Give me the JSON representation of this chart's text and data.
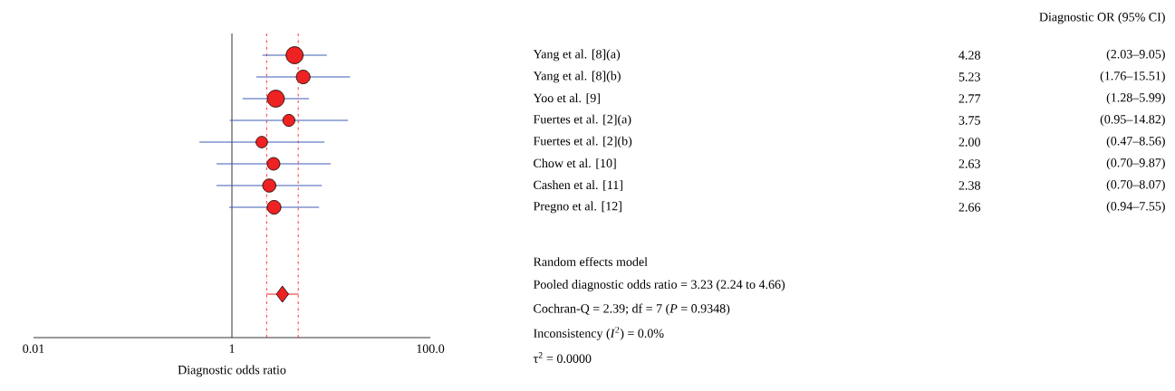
{
  "chart_data": {
    "type": "bubble",
    "orientation": "horizontal",
    "log": "x",
    "title": "Diagnostic OR (95% CI)",
    "xlabel": "Diagnostic odds ratio",
    "xlim": [
      0.01,
      100
    ],
    "xticks": [
      0.01,
      1,
      {
        "value": 100,
        "label": "100.0"
      }
    ],
    "categories": [
      "Yang et al. [8](a)",
      "Yang et al. [8](b)",
      "Yoo et al. [9]",
      "Fuertes et al. [2](a)",
      "Fuertes et al. [2](b)",
      "Chow et al. [10]",
      "Cashen et al. [11]",
      "Pregno et al. [12]",
      null,
      null,
      null,
      null
    ],
    "series": [
      {
        "type": "bubble",
        "color": "#ee2222",
        "values": [
          4.28,
          5.23,
          2.77,
          3.75,
          2.0,
          2.63,
          2.38,
          2.66,
          null,
          null,
          null,
          null
        ],
        "sizes": [
          1,
          0.65,
          1,
          0.5,
          0.46,
          0.55,
          0.6,
          0.65,
          null,
          null,
          null,
          null
        ],
        "errors": [
          [
            2.03,
            9.05
          ],
          [
            1.76,
            15.51
          ],
          [
            1.28,
            5.99
          ],
          [
            0.95,
            14.82
          ],
          [
            0.47,
            8.56
          ],
          [
            0.7,
            9.87
          ],
          [
            0.7,
            8.07
          ],
          [
            0.94,
            7.55
          ],
          null,
          null,
          null,
          null
        ],
        "value_labels": [
          "4.28",
          "5.23",
          "2.77",
          "3.75",
          "2.00",
          "2.63",
          "2.38",
          "2.66",
          null,
          null,
          null,
          null
        ]
      },
      {
        "type": "scatter",
        "marker": "diamond",
        "color": "#ee2222",
        "values": [
          null,
          null,
          null,
          null,
          null,
          null,
          null,
          null,
          null,
          null,
          null,
          3.23
        ],
        "errors": [
          null,
          null,
          null,
          null,
          null,
          null,
          null,
          null,
          null,
          null,
          null,
          [
            2.24,
            4.66
          ]
        ]
      }
    ],
    "ref_lines": [
      {
        "axis": "x",
        "value": 1,
        "color": "#000000",
        "line_style": "solid"
      },
      {
        "axis": "x",
        "value": 2.24,
        "color": "#ff0000",
        "line_style": "dashed"
      },
      {
        "axis": "x",
        "value": 4.66,
        "color": "#ff0000",
        "line_style": "dashed"
      }
    ],
    "annotations": [
      "(2.03–9.05)",
      "(1.76–15.51)",
      "(1.28–5.99)",
      "(0.95–14.82)",
      "(0.47–8.56)",
      "(0.70–9.87)",
      "(0.70–8.07)",
      "(0.94–7.55)",
      "Random effects model",
      "Pooled diagnostic odds ratio = 3.23 (2.24 to 4.66)",
      "Cochran-Q = 2.39; df = 7 (*P* = 0.9348)",
      "Inconsistency (*I*$^{2}$) = 0.0%",
      "τ$^{2}$ = 0.0000"
    ]
  }
}
